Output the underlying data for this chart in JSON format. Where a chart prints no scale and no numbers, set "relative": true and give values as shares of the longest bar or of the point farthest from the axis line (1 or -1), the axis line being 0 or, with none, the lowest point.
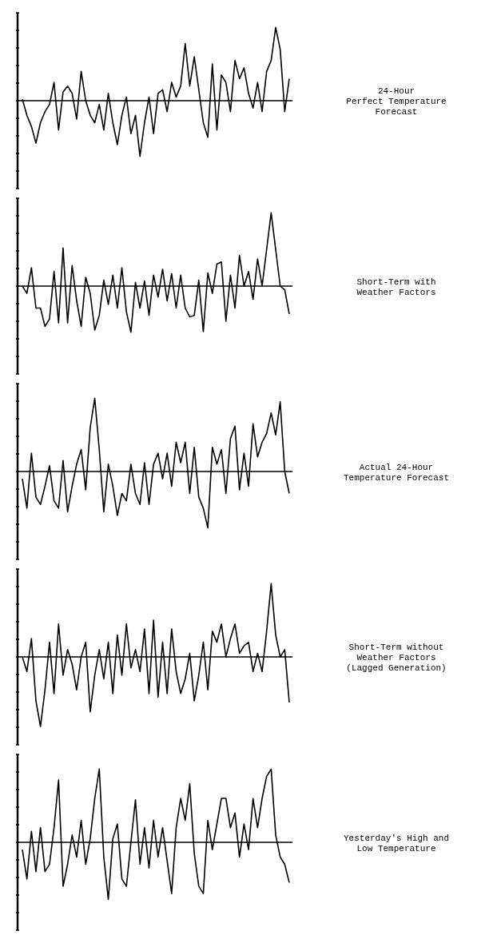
{
  "chart_data": [
    {
      "type": "line",
      "relative": true,
      "annotations": [
        "24-Hour\nPerfect Temperature\nForecast"
      ],
      "categories": [
        null,
        null,
        null,
        null,
        null,
        null,
        null,
        null,
        null,
        null,
        null,
        null,
        null,
        null,
        null,
        null,
        null,
        null,
        null,
        null,
        null,
        null,
        null,
        null,
        null,
        null,
        null,
        null,
        null,
        null,
        null,
        null,
        null,
        null,
        null,
        null,
        null,
        null,
        null,
        null,
        null,
        null,
        null,
        null,
        null,
        null,
        null,
        null,
        null,
        null,
        null,
        null,
        null,
        null,
        null,
        null,
        null,
        null,
        null,
        null
      ],
      "series": [
        {
          "color": "#000000",
          "values": [
            0.02,
            -0.2,
            -0.35,
            -0.58,
            -0.3,
            -0.15,
            -0.05,
            0.25,
            -0.4,
            0.12,
            0.2,
            0.1,
            -0.25,
            0.4,
            0.0,
            -0.2,
            -0.3,
            -0.05,
            -0.4,
            0.1,
            -0.3,
            -0.6,
            -0.2,
            0.05,
            -0.45,
            -0.2,
            -0.76,
            -0.3,
            0.05,
            -0.45,
            0.1,
            0.15,
            -0.15,
            0.25,
            0.05,
            0.2,
            0.78,
            0.2,
            0.6,
            0.15,
            -0.3,
            -0.5,
            0.5,
            -0.4,
            0.35,
            0.25,
            -0.15,
            0.55,
            0.3,
            0.45,
            0.1,
            -0.1,
            0.25,
            -0.15,
            0.4,
            0.55,
            1.0,
            0.7,
            -0.15,
            0.3
          ]
        }
      ]
    },
    {
      "type": "line",
      "relative": true,
      "annotations": [
        "Short-Term with\nWeather Factors"
      ],
      "categories": [
        null,
        null,
        null,
        null,
        null,
        null,
        null,
        null,
        null,
        null,
        null,
        null,
        null,
        null,
        null,
        null,
        null,
        null,
        null,
        null,
        null,
        null,
        null,
        null,
        null,
        null,
        null,
        null,
        null,
        null,
        null,
        null,
        null,
        null,
        null,
        null,
        null,
        null,
        null,
        null,
        null,
        null,
        null,
        null,
        null,
        null,
        null,
        null,
        null,
        null,
        null,
        null,
        null,
        null,
        null,
        null,
        null,
        null,
        null,
        null
      ],
      "series": [
        {
          "color": "#000000",
          "values": [
            0,
            -0.1,
            0.25,
            -0.3,
            -0.3,
            -0.55,
            -0.45,
            0.2,
            -0.5,
            0.52,
            -0.5,
            0.28,
            -0.2,
            -0.55,
            0.12,
            -0.1,
            -0.6,
            -0.4,
            0.08,
            -0.25,
            0.15,
            -0.3,
            0.25,
            -0.35,
            -0.63,
            0.05,
            -0.3,
            0.07,
            -0.4,
            0.15,
            -0.15,
            0.23,
            -0.2,
            0.17,
            -0.3,
            0.15,
            -0.3,
            -0.42,
            -0.4,
            0.08,
            -0.62,
            0.18,
            -0.1,
            0.3,
            0.33,
            -0.48,
            0.15,
            -0.3,
            0.42,
            0.0,
            0.2,
            -0.18,
            0.37,
            0.0,
            0.5,
            1.0,
            0.5,
            0.0,
            -0.05,
            -0.38
          ]
        }
      ]
    },
    {
      "type": "line",
      "relative": true,
      "annotations": [
        "Actual 24-Hour\nTemperature Forecast"
      ],
      "categories": [
        null,
        null,
        null,
        null,
        null,
        null,
        null,
        null,
        null,
        null,
        null,
        null,
        null,
        null,
        null,
        null,
        null,
        null,
        null,
        null,
        null,
        null,
        null,
        null,
        null,
        null,
        null,
        null,
        null,
        null,
        null,
        null,
        null,
        null,
        null,
        null,
        null,
        null,
        null,
        null,
        null,
        null,
        null,
        null,
        null,
        null,
        null,
        null,
        null,
        null,
        null,
        null,
        null,
        null,
        null,
        null,
        null,
        null,
        null,
        null
      ],
      "series": [
        {
          "color": "#000000",
          "values": [
            -0.1,
            -0.5,
            0.25,
            -0.35,
            -0.45,
            -0.2,
            0.08,
            -0.4,
            -0.5,
            0.15,
            -0.55,
            -0.2,
            0.1,
            0.3,
            -0.25,
            0.6,
            1.0,
            0.3,
            -0.55,
            0.1,
            -0.2,
            -0.6,
            -0.3,
            -0.4,
            0.1,
            -0.3,
            -0.45,
            0.12,
            -0.45,
            0.1,
            0.25,
            -0.1,
            0.25,
            -0.2,
            0.4,
            0.12,
            0.4,
            -0.3,
            0.33,
            -0.35,
            -0.5,
            -0.77,
            0.33,
            0.1,
            0.3,
            -0.3,
            0.45,
            0.62,
            -0.25,
            0.25,
            -0.2,
            0.65,
            0.2,
            0.4,
            0.52,
            0.8,
            0.5,
            0.95,
            0.0,
            -0.3
          ]
        }
      ]
    },
    {
      "type": "line",
      "relative": true,
      "annotations": [
        "Short-Term without\nWeather Factors\n(Lagged Generation)"
      ],
      "categories": [
        null,
        null,
        null,
        null,
        null,
        null,
        null,
        null,
        null,
        null,
        null,
        null,
        null,
        null,
        null,
        null,
        null,
        null,
        null,
        null,
        null,
        null,
        null,
        null,
        null,
        null,
        null,
        null,
        null,
        null,
        null,
        null,
        null,
        null,
        null,
        null,
        null,
        null,
        null,
        null,
        null,
        null,
        null,
        null,
        null,
        null,
        null,
        null,
        null,
        null,
        null,
        null,
        null,
        null,
        null,
        null,
        null,
        null,
        null,
        null
      ],
      "series": [
        {
          "color": "#000000",
          "values": [
            0,
            -0.2,
            0.25,
            -0.6,
            -0.95,
            -0.45,
            0.2,
            -0.5,
            0.45,
            -0.25,
            0.1,
            -0.1,
            -0.45,
            0.0,
            0.2,
            -0.75,
            -0.25,
            0.1,
            -0.3,
            0.2,
            -0.5,
            0.3,
            -0.25,
            0.45,
            -0.15,
            0.1,
            -0.2,
            0.38,
            -0.5,
            0.5,
            -0.55,
            0.2,
            -0.5,
            0.38,
            -0.2,
            -0.5,
            -0.3,
            0.05,
            -0.6,
            -0.25,
            0.2,
            -0.45,
            0.35,
            0.2,
            0.45,
            0.0,
            0.25,
            0.45,
            0.05,
            0.15,
            0.2,
            -0.2,
            0.05,
            -0.2,
            0.35,
            1.0,
            0.3,
            0.0,
            0.1,
            -0.62
          ]
        }
      ]
    },
    {
      "type": "line",
      "relative": true,
      "annotations": [
        "Yesterday's High and\nLow Temperature"
      ],
      "categories": [
        null,
        null,
        null,
        null,
        null,
        null,
        null,
        null,
        null,
        null,
        null,
        null,
        null,
        null,
        null,
        null,
        null,
        null,
        null,
        null,
        null,
        null,
        null,
        null,
        null,
        null,
        null,
        null,
        null,
        null,
        null,
        null,
        null,
        null,
        null,
        null,
        null,
        null,
        null,
        null,
        null,
        null,
        null,
        null,
        null,
        null,
        null,
        null,
        null,
        null,
        null,
        null,
        null,
        null,
        null,
        null,
        null,
        null,
        null,
        null
      ],
      "series": [
        {
          "color": "#000000",
          "values": [
            -0.1,
            -0.5,
            0.15,
            -0.4,
            0.2,
            -0.4,
            -0.3,
            0.2,
            0.85,
            -0.6,
            -0.3,
            0.1,
            -0.2,
            0.3,
            -0.3,
            0.05,
            0.6,
            1.0,
            -0.2,
            -0.78,
            0.05,
            0.25,
            -0.5,
            -0.6,
            0.0,
            0.58,
            -0.3,
            0.2,
            -0.35,
            0.3,
            -0.2,
            0.2,
            -0.25,
            -0.7,
            0.2,
            0.6,
            0.3,
            0.8,
            -0.15,
            -0.6,
            -0.7,
            0.3,
            -0.1,
            0.25,
            0.6,
            0.6,
            0.2,
            0.4,
            -0.2,
            0.25,
            -0.1,
            0.6,
            0.2,
            0.6,
            0.9,
            1.0,
            0.1,
            -0.2,
            -0.3,
            -0.55
          ]
        }
      ]
    }
  ]
}
